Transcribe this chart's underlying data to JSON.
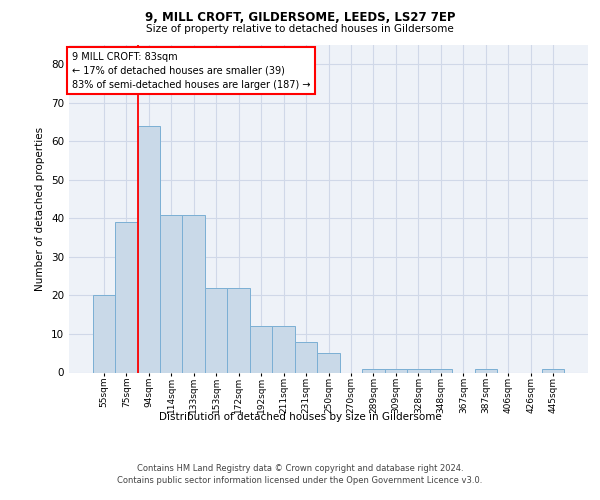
{
  "title1": "9, MILL CROFT, GILDERSOME, LEEDS, LS27 7EP",
  "title2": "Size of property relative to detached houses in Gildersome",
  "xlabel": "Distribution of detached houses by size in Gildersome",
  "ylabel": "Number of detached properties",
  "categories": [
    "55sqm",
    "75sqm",
    "94sqm",
    "114sqm",
    "133sqm",
    "153sqm",
    "172sqm",
    "192sqm",
    "211sqm",
    "231sqm",
    "250sqm",
    "270sqm",
    "289sqm",
    "309sqm",
    "328sqm",
    "348sqm",
    "367sqm",
    "387sqm",
    "406sqm",
    "426sqm",
    "445sqm"
  ],
  "values": [
    20,
    39,
    64,
    41,
    41,
    22,
    22,
    12,
    12,
    8,
    5,
    0,
    1,
    1,
    1,
    1,
    0,
    1,
    0,
    0,
    1
  ],
  "bar_color": "#c9d9e8",
  "bar_edge_color": "#7bafd4",
  "annotation_lines": [
    "9 MILL CROFT: 83sqm",
    "← 17% of detached houses are smaller (39)",
    "83% of semi-detached houses are larger (187) →"
  ],
  "annotation_box_color": "white",
  "annotation_box_edge_color": "red",
  "vline_color": "red",
  "vline_x": 1.5,
  "ylim": [
    0,
    85
  ],
  "yticks": [
    0,
    10,
    20,
    30,
    40,
    50,
    60,
    70,
    80
  ],
  "grid_color": "#d0d8e8",
  "background_color": "#eef2f8",
  "footer1": "Contains HM Land Registry data © Crown copyright and database right 2024.",
  "footer2": "Contains public sector information licensed under the Open Government Licence v3.0."
}
